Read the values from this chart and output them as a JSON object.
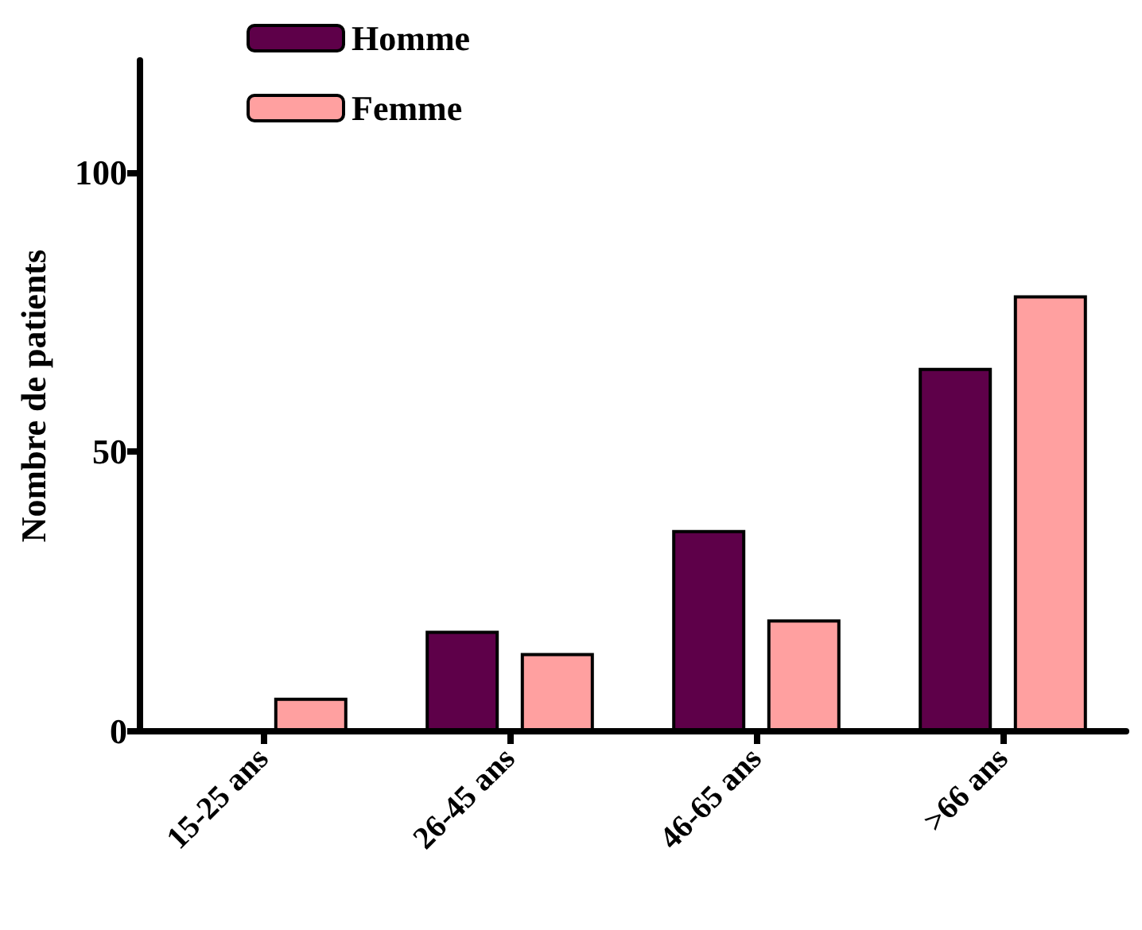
{
  "chart_data": {
    "type": "bar",
    "ylabel": "Nombre de patients",
    "categories": [
      "15-25 ans",
      "26-45 ans",
      "46-65 ans",
      ">66 ans"
    ],
    "series": [
      {
        "name": "Homme",
        "color": "#5e0049",
        "values": [
          0,
          18,
          36,
          65
        ]
      },
      {
        "name": "Femme",
        "color": "#ffa0a0",
        "values": [
          6,
          14,
          20,
          78
        ]
      }
    ],
    "ylim": [
      0,
      120
    ],
    "yticks": [
      0,
      50,
      100
    ],
    "grid": false,
    "legend": "top left"
  }
}
